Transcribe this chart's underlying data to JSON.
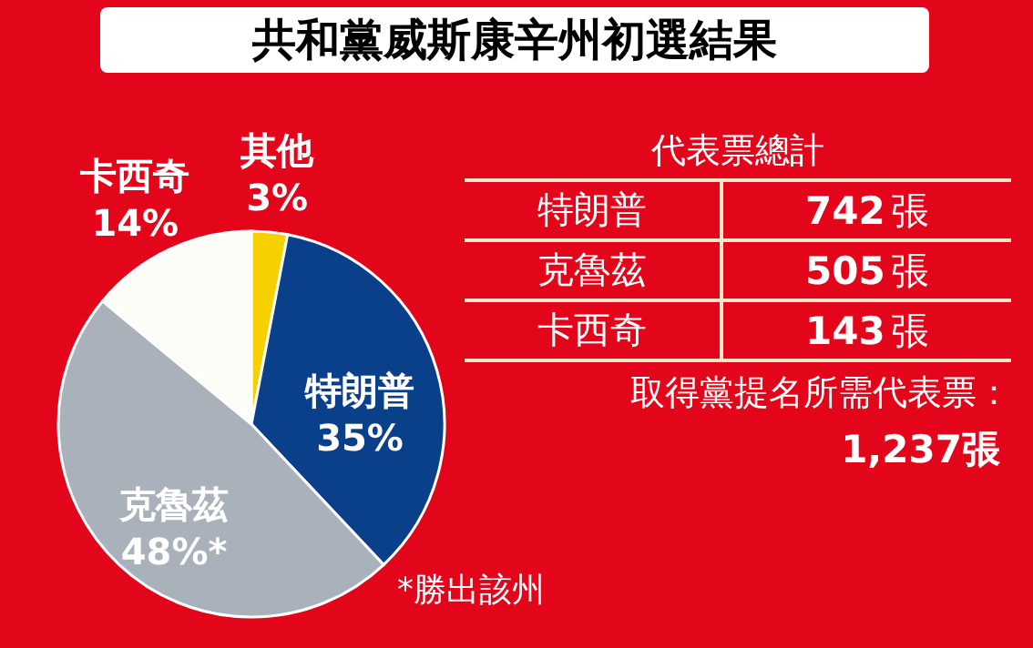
{
  "chart_data": [
    {
      "type": "pie",
      "title": "共和黨威斯康辛州初選結果",
      "categories": [
        "其他",
        "特朗普",
        "克魯茲",
        "卡西奇"
      ],
      "values": [
        3,
        35,
        48,
        14
      ],
      "value_labels": [
        "3%",
        "35%",
        "48%*",
        "14%"
      ],
      "colors": [
        "#f7d000",
        "#0a3f8a",
        "#a9b1ba",
        "#fdfdf8"
      ],
      "annotations": [
        "*勝出該州"
      ]
    },
    {
      "type": "other",
      "title": "代表票總計",
      "categories": [
        "特朗普",
        "克魯茲",
        "卡西奇"
      ],
      "values": [
        742,
        505,
        143
      ],
      "value_labels": [
        "742張",
        "505張",
        "143張"
      ],
      "annotations": [
        "取得黨提名所需代表票：",
        "1,237張"
      ]
    }
  ]
}
